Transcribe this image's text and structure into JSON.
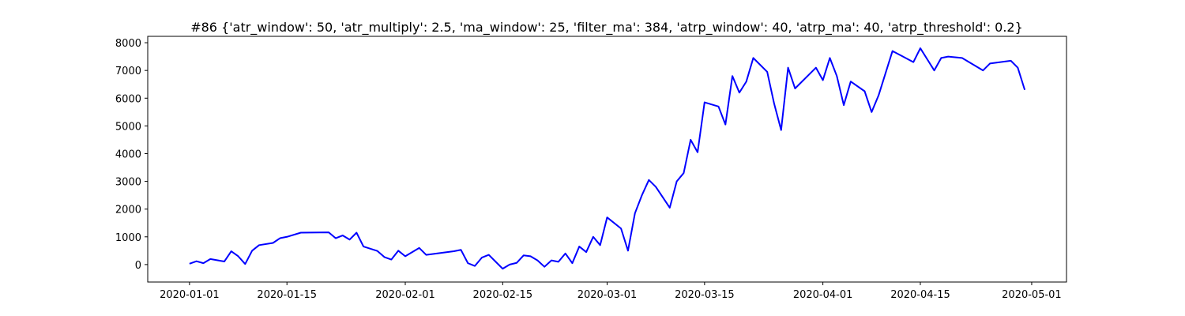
{
  "chart_data": {
    "type": "line",
    "title": "#86 {'atr_window': 50, 'atr_multiply': 2.5, 'ma_window': 25, 'filter_ma': 384, 'atrp_window': 40, 'atrp_ma': 40, 'atrp_threshold': 0.2}",
    "x": [
      "2020-01-01",
      "2020-01-02",
      "2020-01-03",
      "2020-01-04",
      "2020-01-06",
      "2020-01-07",
      "2020-01-08",
      "2020-01-09",
      "2020-01-10",
      "2020-01-11",
      "2020-01-13",
      "2020-01-14",
      "2020-01-15",
      "2020-01-17",
      "2020-01-21",
      "2020-01-22",
      "2020-01-23",
      "2020-01-24",
      "2020-01-25",
      "2020-01-26",
      "2020-01-28",
      "2020-01-29",
      "2020-01-30",
      "2020-01-31",
      "2020-02-01",
      "2020-02-03",
      "2020-02-04",
      "2020-02-08",
      "2020-02-09",
      "2020-02-10",
      "2020-02-11",
      "2020-02-12",
      "2020-02-13",
      "2020-02-14",
      "2020-02-15",
      "2020-02-16",
      "2020-02-17",
      "2020-02-18",
      "2020-02-19",
      "2020-02-20",
      "2020-02-21",
      "2020-02-22",
      "2020-02-23",
      "2020-02-24",
      "2020-02-25",
      "2020-02-26",
      "2020-02-27",
      "2020-02-28",
      "2020-02-29",
      "2020-03-01",
      "2020-03-03",
      "2020-03-04",
      "2020-03-05",
      "2020-03-06",
      "2020-03-07",
      "2020-03-08",
      "2020-03-10",
      "2020-03-11",
      "2020-03-12",
      "2020-03-13",
      "2020-03-14",
      "2020-03-15",
      "2020-03-17",
      "2020-03-18",
      "2020-03-19",
      "2020-03-20",
      "2020-03-21",
      "2020-03-22",
      "2020-03-24",
      "2020-03-25",
      "2020-03-26",
      "2020-03-27",
      "2020-03-28",
      "2020-03-31",
      "2020-04-01",
      "2020-04-02",
      "2020-04-03",
      "2020-04-04",
      "2020-04-05",
      "2020-04-07",
      "2020-04-08",
      "2020-04-09",
      "2020-04-11",
      "2020-04-14",
      "2020-04-15",
      "2020-04-16",
      "2020-04-17",
      "2020-04-18",
      "2020-04-19",
      "2020-04-21",
      "2020-04-22",
      "2020-04-24",
      "2020-04-25",
      "2020-04-28",
      "2020-04-29",
      "2020-04-30"
    ],
    "values": [
      30,
      120,
      50,
      200,
      110,
      480,
      300,
      20,
      500,
      700,
      780,
      950,
      1000,
      1150,
      1160,
      950,
      1050,
      900,
      1150,
      650,
      490,
      270,
      180,
      500,
      300,
      600,
      350,
      480,
      530,
      50,
      -50,
      250,
      350,
      100,
      -150,
      0,
      60,
      330,
      300,
      150,
      -80,
      150,
      100,
      400,
      50,
      650,
      450,
      1000,
      700,
      1700,
      1300,
      500,
      1850,
      2500,
      3050,
      2800,
      2050,
      3000,
      3300,
      4500,
      4050,
      5850,
      5700,
      5050,
      6800,
      6200,
      6600,
      7450,
      6950,
      5800,
      4850,
      7100,
      6350,
      7100,
      6650,
      7450,
      6800,
      5750,
      6600,
      6250,
      5500,
      6100,
      7700,
      7300,
      7800,
      7400,
      7000,
      7450,
      7500,
      7450,
      7300,
      7000,
      7250,
      7350,
      7100,
      6300
    ],
    "color": "#0000ff",
    "xlim": [
      "2019-12-26",
      "2020-05-06"
    ],
    "xticks": [
      "2020-01-01",
      "2020-01-15",
      "2020-02-01",
      "2020-02-15",
      "2020-03-01",
      "2020-03-15",
      "2020-04-01",
      "2020-04-15",
      "2020-05-01"
    ],
    "ylim": [
      -630,
      8230
    ],
    "yticks": [
      0,
      1000,
      2000,
      3000,
      4000,
      5000,
      6000,
      7000,
      8000
    ],
    "grid": false
  }
}
